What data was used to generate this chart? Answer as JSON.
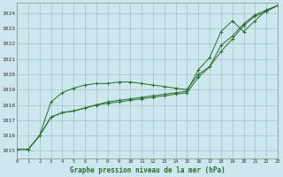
{
  "title": "Graphe pression niveau de la mer (hPa)",
  "background_color": "#cce8ee",
  "grid_color": "#99bbbb",
  "line_color": "#2d6a2d",
  "xlim": [
    0,
    23
  ],
  "ylim": [
    1014.5,
    1024.7
  ],
  "xticks": [
    0,
    1,
    2,
    3,
    4,
    5,
    6,
    7,
    8,
    9,
    10,
    11,
    12,
    13,
    14,
    15,
    16,
    17,
    18,
    19,
    20,
    21,
    22,
    23
  ],
  "yticks": [
    1015,
    1016,
    1017,
    1018,
    1019,
    1020,
    1021,
    1022,
    1023,
    1024
  ],
  "x": [
    0,
    1,
    2,
    3,
    4,
    5,
    6,
    7,
    8,
    9,
    10,
    11,
    12,
    13,
    14,
    15,
    16,
    17,
    18,
    19,
    20,
    21,
    22,
    23
  ],
  "line1": [
    1015.1,
    1015.1,
    1016.0,
    1017.2,
    1017.5,
    1017.6,
    1017.8,
    1018.0,
    1018.1,
    1018.2,
    1018.3,
    1018.4,
    1018.5,
    1018.6,
    1018.7,
    1018.8,
    1019.8,
    1020.5,
    1021.5,
    1022.3,
    1023.2,
    1023.8,
    1024.1,
    1024.5
  ],
  "line2": [
    1015.1,
    1015.1,
    1016.0,
    1018.2,
    1018.8,
    1019.1,
    1019.3,
    1019.4,
    1019.4,
    1019.5,
    1019.5,
    1019.4,
    1019.3,
    1019.2,
    1019.1,
    1019.0,
    1020.0,
    1020.5,
    1021.9,
    1022.5,
    1023.3,
    1023.9,
    1024.2,
    1024.5
  ],
  "line3": [
    1015.1,
    1015.1,
    1016.0,
    1017.2,
    1017.5,
    1017.6,
    1017.8,
    1018.0,
    1018.2,
    1018.3,
    1018.4,
    1018.5,
    1018.6,
    1018.7,
    1018.8,
    1018.9,
    1020.3,
    1021.1,
    1022.8,
    1023.5,
    1022.8,
    1023.5,
    1024.2,
    1024.5
  ]
}
